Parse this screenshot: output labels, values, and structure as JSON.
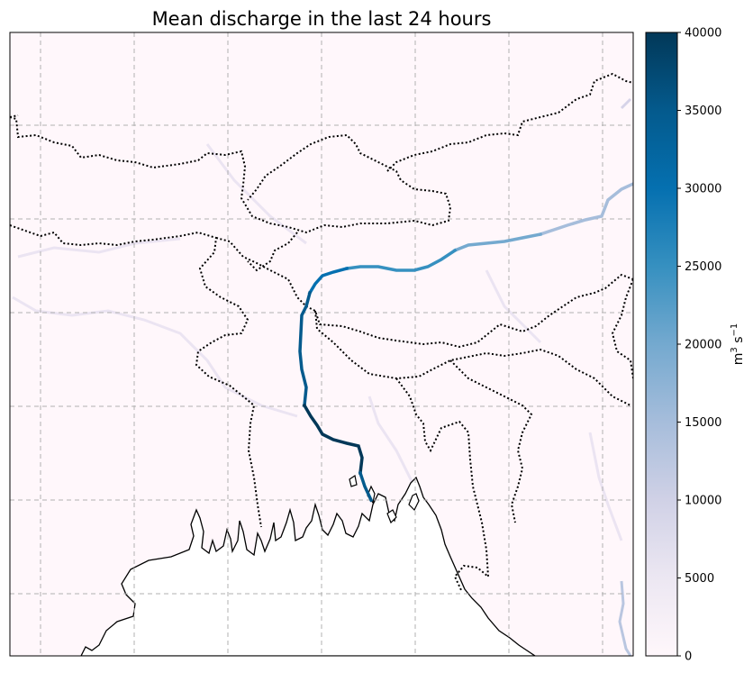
{
  "title": "Mean discharge in the last 24 hours",
  "colorbar": {
    "label_base": "m",
    "label_exp1": "3",
    "label_mid": " s",
    "label_exp2": "−1",
    "min": 0,
    "max": 40000,
    "ticks": [
      "0",
      "5000",
      "10000",
      "15000",
      "20000",
      "25000",
      "30000",
      "35000",
      "40000"
    ],
    "tick_values": [
      0,
      5000,
      10000,
      15000,
      20000,
      25000,
      30000,
      35000,
      40000
    ],
    "colormap": "PuBu",
    "stops": [
      "#fff7fb",
      "#ece7f2",
      "#d0d1e6",
      "#a6bddb",
      "#74a9cf",
      "#3690c0",
      "#0570b0",
      "#045a8d",
      "#023858"
    ]
  },
  "map": {
    "background_color": "#fff7fb",
    "sea_color": "#ffffff",
    "gridlines": true,
    "gridline_color": "#b0b0b0",
    "coastline_color": "#000000",
    "border_style": "dotted"
  }
}
